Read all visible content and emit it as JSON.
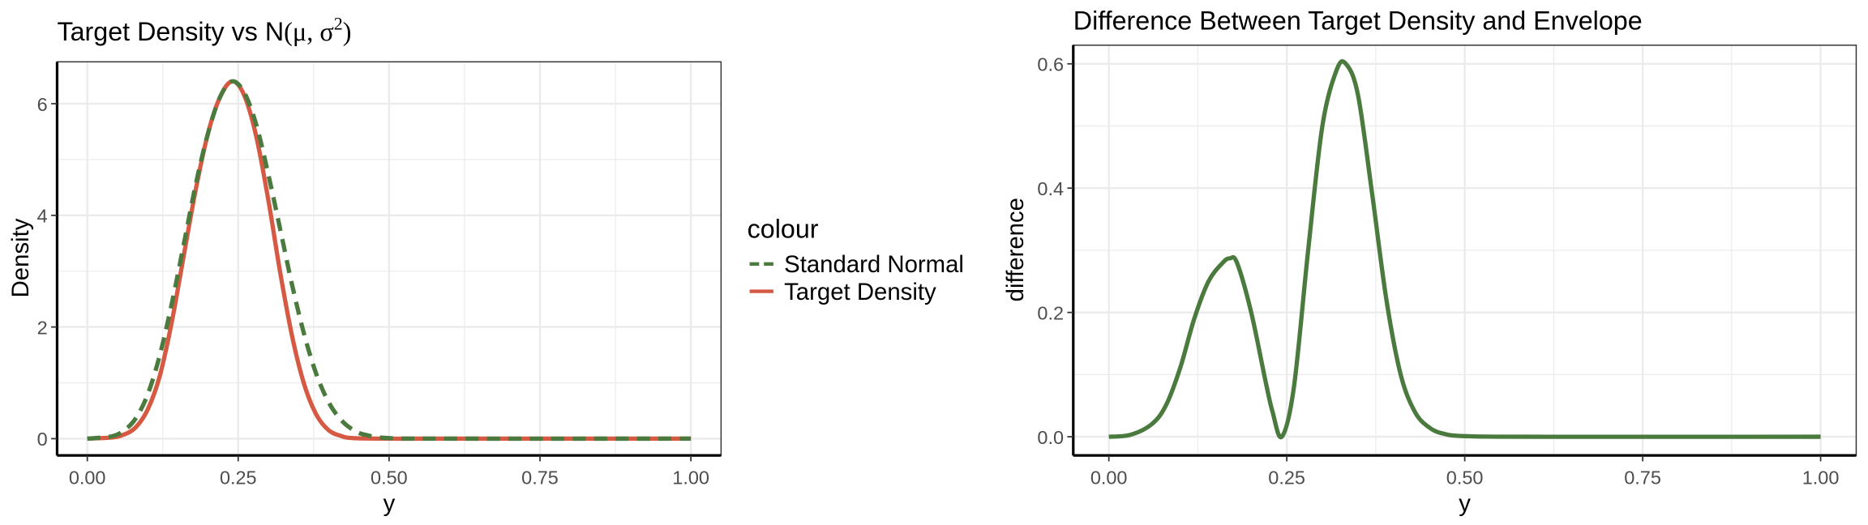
{
  "colors": {
    "green": "#4a7a3d",
    "red": "#d65a43",
    "grid": "#ebebeb",
    "axis_text": "#4d4d4d"
  },
  "chart_data": [
    {
      "type": "line",
      "title": "Target Density vs N(μ, σ²)",
      "title_parts": {
        "prefix": "Target Density vs N",
        "mu": "μ",
        "sigma": "σ",
        "sup": "2"
      },
      "xlabel": "y",
      "ylabel": "Density",
      "xlim": [
        -0.05,
        1.05
      ],
      "ylim": [
        -0.3,
        6.75
      ],
      "xticks": [
        0,
        0.25,
        0.5,
        0.75,
        1
      ],
      "xtick_labels": [
        "0.00",
        "0.25",
        "0.50",
        "0.75",
        "1.00"
      ],
      "yticks": [
        0,
        2,
        4,
        6
      ],
      "ytick_labels": [
        "0",
        "2",
        "4",
        "6"
      ],
      "grid": true,
      "legend": {
        "title": "colour",
        "placement": "right",
        "entries": [
          {
            "label": "Standard Normal",
            "color": "#4a7a3d",
            "dash": "dashed"
          },
          {
            "label": "Target Density",
            "color": "#d65a43",
            "dash": "solid"
          }
        ]
      },
      "series": [
        {
          "name": "Standard Normal",
          "color": "#4a7a3d",
          "style": "dashed",
          "x": [
            0,
            0.04,
            0.06,
            0.08,
            0.1,
            0.12,
            0.14,
            0.16,
            0.18,
            0.2,
            0.22,
            0.24,
            0.26,
            0.28,
            0.3,
            0.32,
            0.34,
            0.36,
            0.38,
            0.4,
            0.42,
            0.44,
            0.46,
            0.5,
            0.6,
            1
          ],
          "y": [
            0.0,
            0.04,
            0.14,
            0.36,
            0.79,
            1.49,
            2.42,
            3.49,
            4.57,
            5.47,
            6.12,
            6.4,
            6.2,
            5.62,
            4.73,
            3.73,
            2.72,
            1.84,
            1.14,
            0.65,
            0.34,
            0.16,
            0.07,
            0.01,
            0.0,
            0.0
          ]
        },
        {
          "name": "Target Density",
          "color": "#d65a43",
          "style": "solid",
          "x": [
            0,
            0.04,
            0.06,
            0.08,
            0.1,
            0.12,
            0.14,
            0.16,
            0.18,
            0.2,
            0.22,
            0.24,
            0.26,
            0.28,
            0.3,
            0.32,
            0.34,
            0.36,
            0.38,
            0.4,
            0.42,
            0.44,
            0.5,
            0.6,
            1
          ],
          "y": [
            0.0,
            0.02,
            0.07,
            0.2,
            0.52,
            1.12,
            2.09,
            3.29,
            4.48,
            5.47,
            6.12,
            6.4,
            6.15,
            5.41,
            4.27,
            2.95,
            1.8,
            0.95,
            0.42,
            0.15,
            0.05,
            0.01,
            0.0,
            0.0,
            0.0
          ]
        }
      ]
    },
    {
      "type": "line",
      "title": "Difference Between Target Density and Envelope",
      "xlabel": "y",
      "ylabel": "difference",
      "xlim": [
        -0.05,
        1.05
      ],
      "ylim": [
        -0.03,
        0.63
      ],
      "xticks": [
        0,
        0.25,
        0.5,
        0.75,
        1
      ],
      "xtick_labels": [
        "0.00",
        "0.25",
        "0.50",
        "0.75",
        "1.00"
      ],
      "yticks": [
        0,
        0.2,
        0.4,
        0.6
      ],
      "ytick_labels": [
        "0.0",
        "0.2",
        "0.4",
        "0.6"
      ],
      "grid": true,
      "series": [
        {
          "color": "#4a7a3d",
          "style": "solid",
          "x": [
            0,
            0.03,
            0.06,
            0.08,
            0.1,
            0.12,
            0.14,
            0.16,
            0.17,
            0.18,
            0.2,
            0.22,
            0.23,
            0.243,
            0.26,
            0.28,
            0.3,
            0.32,
            0.333,
            0.35,
            0.37,
            0.39,
            0.41,
            0.43,
            0.45,
            0.47,
            0.5,
            0.6,
            1
          ],
          "y": [
            0.0,
            0.003,
            0.02,
            0.05,
            0.11,
            0.19,
            0.25,
            0.28,
            0.287,
            0.28,
            0.2,
            0.09,
            0.04,
            0.0,
            0.08,
            0.3,
            0.5,
            0.59,
            0.6,
            0.55,
            0.39,
            0.22,
            0.1,
            0.04,
            0.015,
            0.005,
            0.001,
            0.0,
            0.0
          ]
        }
      ]
    }
  ]
}
